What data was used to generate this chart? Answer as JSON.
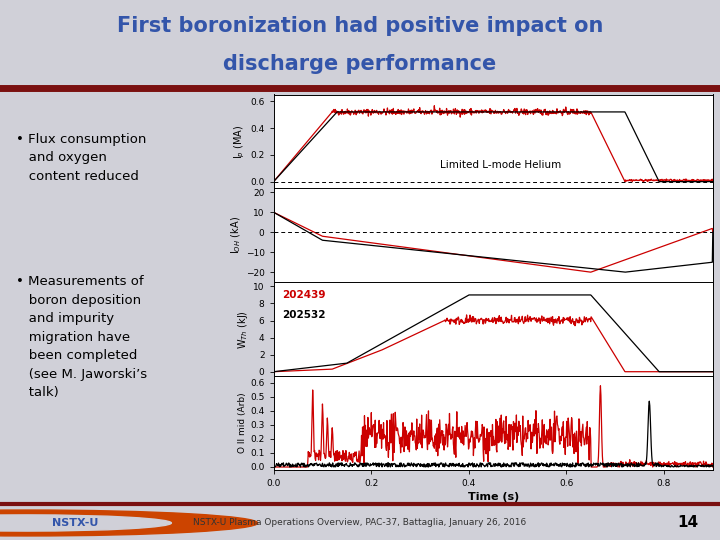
{
  "title_line1": "First boronization had positive impact on",
  "title_line2": "discharge performance",
  "title_color": "#3355aa",
  "title_bg": "#d0d0d8",
  "title_bar_color": "#7a1010",
  "footer": "NSTX-U Plasma Operations Overview, PAC-37, Battaglia, January 26, 2016",
  "footer_page": "14",
  "plot_bg": "#ffffff",
  "line_red": "#cc0000",
  "line_black": "#000000",
  "xlabel": "Time (s)",
  "ylabel1": "I$_p$ (MA)",
  "ylabel2": "I$_{OH}$ (kA)",
  "ylabel3": "W$_{Th}$ (kJ)",
  "ylabel4": "O II mid (Arb)",
  "legend_red": "202439",
  "legend_black": "202532",
  "annotation": "Limited L-mode Helium",
  "xmin": 0.0,
  "xmax": 0.9,
  "panel1_ylim": [
    -0.05,
    0.65
  ],
  "panel1_yticks": [
    0.0,
    0.2,
    0.4,
    0.6
  ],
  "panel2_ylim": [
    -25,
    22
  ],
  "panel2_yticks": [
    -20,
    -10,
    0,
    10,
    20
  ],
  "panel3_ylim": [
    -0.5,
    10.5
  ],
  "panel3_yticks": [
    0,
    2,
    4,
    6,
    8,
    10
  ],
  "panel4_ylim": [
    -0.02,
    0.65
  ],
  "panel4_yticks": [
    0.0,
    0.1,
    0.2,
    0.3,
    0.4,
    0.5,
    0.6
  ],
  "xticks": [
    0.0,
    0.2,
    0.4,
    0.6,
    0.8
  ]
}
